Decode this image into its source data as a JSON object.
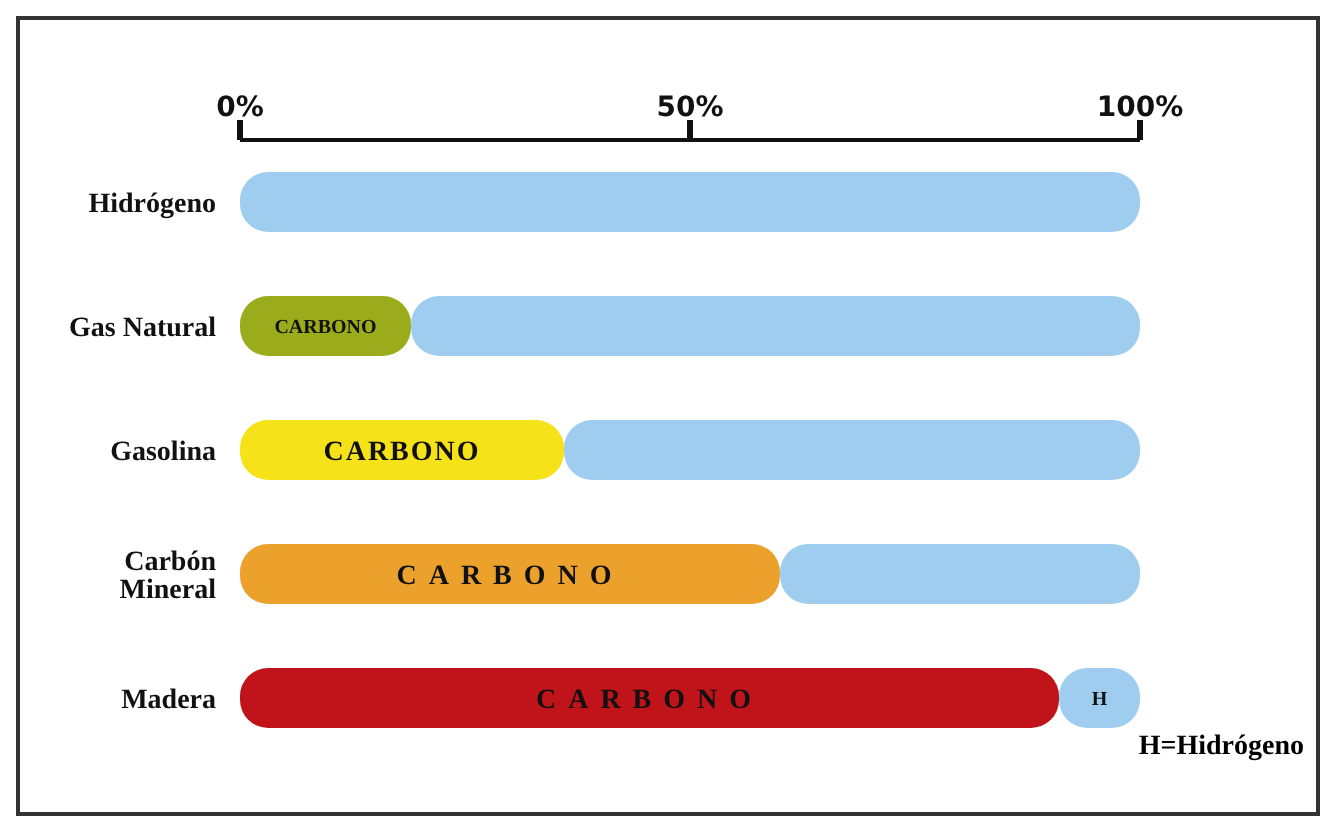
{
  "chart_data": {
    "type": "bar",
    "orientation": "horizontal",
    "stacked": true,
    "categories": [
      "Hidrógeno",
      "Gas Natural",
      "Gasolina",
      "Carbón Mineral",
      "Madera"
    ],
    "series": [
      {
        "colors": [
          "#9aac1c",
          "#9aac1c",
          "#f5e218",
          "#eba12c",
          "#c0141a"
        ],
        "values": [
          0,
          19,
          36,
          60,
          91
        ],
        "value_labels": [
          null,
          "CARBONO",
          "CARBONO",
          "CARBONO",
          "CARBONO"
        ]
      },
      {
        "color": "#9fcdf0",
        "values": [
          100,
          81,
          64,
          40,
          9
        ],
        "value_labels": [
          null,
          null,
          null,
          null,
          "H"
        ]
      }
    ],
    "xlim": [
      0,
      100
    ],
    "xticks": [
      {
        "value": 0,
        "label": "0%"
      },
      {
        "value": 50,
        "label": "50%"
      },
      {
        "value": 100,
        "label": "100%"
      }
    ],
    "grid": false,
    "legend": false,
    "annotations": [
      "H=Hidrógeno"
    ]
  }
}
